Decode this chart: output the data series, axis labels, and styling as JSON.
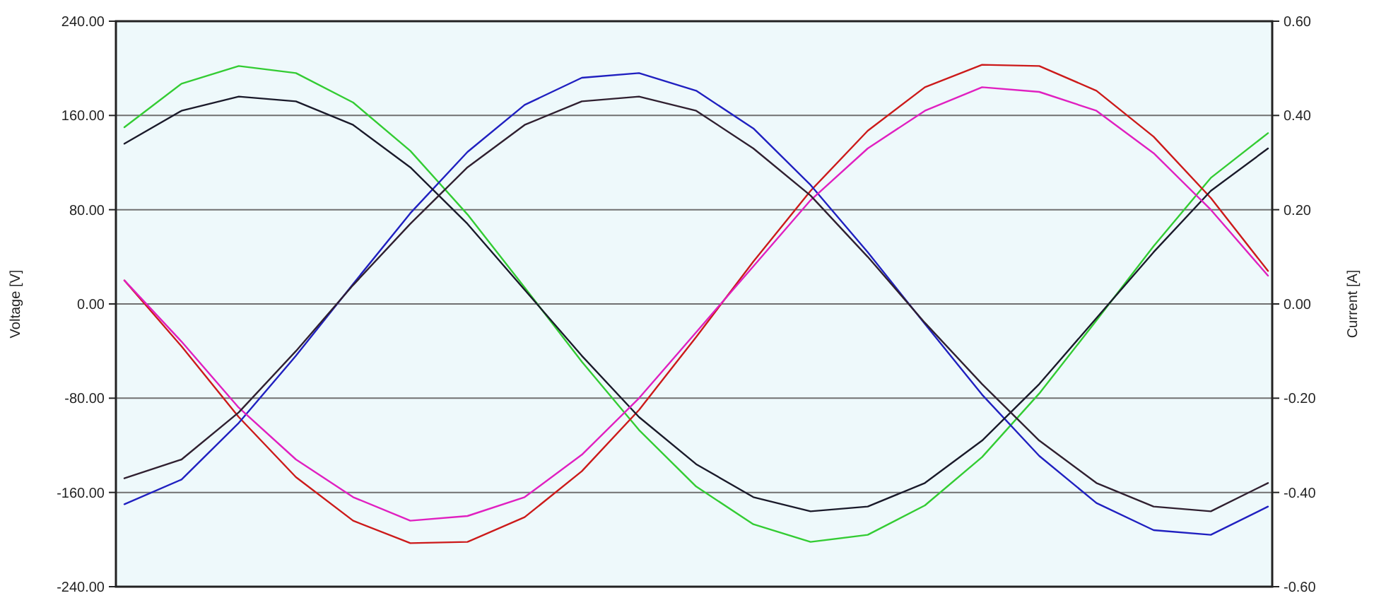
{
  "chart_data": {
    "type": "line",
    "ylabel": "Voltage [V]",
    "y2label": "Current [A]",
    "categories": [
      null,
      null,
      null,
      null,
      null,
      null,
      null,
      null,
      null,
      null,
      null,
      null,
      null,
      null,
      null,
      null,
      null,
      null,
      null,
      null,
      null
    ],
    "ylim": [
      -240,
      240
    ],
    "yticks": [
      {
        "value": -240,
        "label": "-240.00"
      },
      {
        "value": -160,
        "label": "-160.00"
      },
      {
        "value": -80,
        "label": "-80.00"
      },
      {
        "value": 0,
        "label": "0.00"
      },
      {
        "value": 80,
        "label": "80.00"
      },
      {
        "value": 160,
        "label": "160.00"
      },
      {
        "value": 240,
        "label": "240.00"
      }
    ],
    "y2lim": [
      -0.6,
      0.6
    ],
    "y2ticks": [
      {
        "value": -0.6,
        "label": "-0.60"
      },
      {
        "value": -0.4,
        "label": "-0.40"
      },
      {
        "value": -0.2,
        "label": "-0.20"
      },
      {
        "value": 0,
        "label": "0.00"
      },
      {
        "value": 0.2,
        "label": "0.20"
      },
      {
        "value": 0.4,
        "label": "0.40"
      },
      {
        "value": 0.6,
        "label": "0.60"
      }
    ],
    "grid": "y",
    "marker": "none",
    "line_style": "solid",
    "series": [
      {
        "color": "#33cc33",
        "values": [
          150,
          187,
          202,
          196,
          171,
          130,
          76,
          14,
          -49,
          -107,
          -155,
          -187,
          -202,
          -196,
          -171,
          -130,
          -76,
          -14,
          49,
          107,
          145
        ]
      },
      {
        "color": "#cc1a1a",
        "values": [
          20,
          -36,
          -96,
          -147,
          -184,
          -203,
          -202,
          -181,
          -142,
          -90,
          -28,
          36,
          96,
          147,
          184,
          203,
          202,
          181,
          142,
          90,
          28
        ]
      },
      {
        "color": "#2020c0",
        "values": [
          -170,
          -149,
          -101,
          -44,
          17,
          77,
          129,
          169,
          192,
          196,
          181,
          149,
          101,
          44,
          -17,
          -77,
          -129,
          -169,
          -192,
          -196,
          -172
        ]
      },
      {
        "color": "#1a1a2a",
        "axis": "y2",
        "values": [
          0.34,
          0.41,
          0.44,
          0.43,
          0.38,
          0.29,
          0.17,
          0.03,
          -0.11,
          -0.24,
          -0.34,
          -0.41,
          -0.44,
          -0.43,
          -0.38,
          -0.29,
          -0.17,
          -0.03,
          0.11,
          0.24,
          0.33
        ]
      },
      {
        "color": "#e020c0",
        "axis": "y2",
        "values": [
          0.05,
          -0.08,
          -0.22,
          -0.33,
          -0.41,
          -0.46,
          -0.45,
          -0.41,
          -0.32,
          -0.2,
          -0.06,
          0.08,
          0.22,
          0.33,
          0.41,
          0.46,
          0.45,
          0.41,
          0.32,
          0.2,
          0.06
        ]
      },
      {
        "color": "#302030",
        "axis": "y2",
        "values": [
          -0.37,
          -0.33,
          -0.23,
          -0.1,
          0.04,
          0.17,
          0.29,
          0.38,
          0.43,
          0.44,
          0.41,
          0.33,
          0.23,
          0.1,
          -0.04,
          -0.17,
          -0.29,
          -0.38,
          -0.43,
          -0.44,
          -0.38
        ]
      }
    ]
  }
}
